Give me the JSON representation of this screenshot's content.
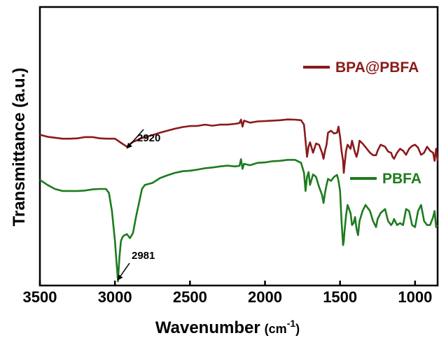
{
  "chart_data": {
    "type": "line",
    "xlabel": "Wavenumber",
    "xlabel_unit_open": "(cm",
    "xlabel_unit_exp": "-1",
    "xlabel_unit_close": ")",
    "ylabel": "Transmittance (a.u.)",
    "xlim": [
      3500,
      850
    ],
    "x_reversed": true,
    "x_ticks": [
      3500,
      3000,
      2500,
      2000,
      1500,
      1000
    ],
    "x_tick_labels": [
      "3500",
      "3000",
      "2500",
      "2000",
      "1500",
      "1000"
    ],
    "ylim": [
      0,
      100
    ],
    "y_ticks_shown": false,
    "grid": false,
    "legend_placement": "right, beside each curve",
    "series": [
      {
        "name": "BPA@PBFA",
        "color": "#8B1A1A",
        "x": [
          3500,
          3450,
          3400,
          3350,
          3300,
          3250,
          3200,
          3150,
          3100,
          3050,
          3000,
          2980,
          2960,
          2940,
          2920,
          2900,
          2880,
          2860,
          2840,
          2800,
          2750,
          2700,
          2650,
          2600,
          2550,
          2500,
          2450,
          2400,
          2350,
          2300,
          2250,
          2200,
          2170,
          2160,
          2150,
          2140,
          2100,
          2050,
          2000,
          1950,
          1900,
          1850,
          1800,
          1760,
          1740,
          1730,
          1720,
          1710,
          1700,
          1680,
          1660,
          1640,
          1620,
          1610,
          1600,
          1590,
          1580,
          1560,
          1540,
          1520,
          1510,
          1500,
          1490,
          1480,
          1475,
          1470,
          1460,
          1450,
          1430,
          1420,
          1410,
          1400,
          1390,
          1380,
          1370,
          1350,
          1330,
          1300,
          1280,
          1260,
          1250,
          1230,
          1200,
          1180,
          1160,
          1150,
          1140,
          1120,
          1100,
          1080,
          1060,
          1040,
          1020,
          1000,
          980,
          960,
          940,
          920,
          900,
          880,
          870,
          860,
          850
        ],
        "y": [
          73,
          72,
          71.5,
          71,
          71,
          71.2,
          71.8,
          71.8,
          71.2,
          71,
          71,
          70,
          69,
          68,
          67,
          68.3,
          69.4,
          70,
          70.8,
          71.8,
          72.8,
          74,
          75,
          76,
          76.8,
          77.3,
          77.4,
          78,
          77.5,
          78,
          78,
          78.4,
          78.8,
          80.5,
          77,
          80,
          79,
          79.6,
          79.8,
          80,
          80.2,
          80.6,
          80.5,
          80.2,
          78,
          70,
          62,
          67,
          69.2,
          64,
          68.6,
          68,
          64,
          61,
          65,
          68,
          74,
          75,
          73.6,
          74,
          77,
          72,
          65,
          60,
          54,
          58,
          65,
          68,
          66,
          70,
          67,
          64,
          62,
          65,
          70,
          68.6,
          66.8,
          64,
          62.8,
          62.8,
          65,
          68,
          67,
          64.6,
          64,
          62,
          61,
          64,
          66,
          65,
          63,
          66,
          67.4,
          68,
          66.5,
          63,
          64,
          67,
          65,
          64,
          60,
          66,
          60
        ]
      },
      {
        "name": "PBFA",
        "color": "#1E7B1E",
        "x": [
          3500,
          3450,
          3400,
          3350,
          3300,
          3250,
          3200,
          3150,
          3100,
          3060,
          3040,
          3020,
          3000,
          2990,
          2980,
          2975,
          2970,
          2960,
          2950,
          2940,
          2920,
          2900,
          2880,
          2860,
          2840,
          2820,
          2800,
          2750,
          2700,
          2650,
          2600,
          2550,
          2500,
          2450,
          2400,
          2350,
          2300,
          2250,
          2200,
          2170,
          2160,
          2150,
          2140,
          2100,
          2050,
          2000,
          1950,
          1900,
          1850,
          1800,
          1760,
          1740,
          1730,
          1720,
          1710,
          1700,
          1680,
          1660,
          1640,
          1620,
          1610,
          1600,
          1590,
          1580,
          1560,
          1540,
          1520,
          1510,
          1500,
          1490,
          1480,
          1475,
          1470,
          1460,
          1450,
          1430,
          1420,
          1410,
          1400,
          1390,
          1380,
          1370,
          1350,
          1330,
          1300,
          1280,
          1260,
          1250,
          1230,
          1200,
          1180,
          1160,
          1150,
          1140,
          1120,
          1100,
          1080,
          1060,
          1040,
          1020,
          1000,
          980,
          960,
          940,
          920,
          900,
          880,
          870,
          860,
          850
        ],
        "y": [
          50.5,
          48,
          46,
          45,
          45,
          45,
          45.2,
          45.8,
          46,
          46,
          44,
          35,
          20,
          10,
          0,
          6,
          12,
          20,
          22,
          22.8,
          23.5,
          21.5,
          24,
          32,
          39,
          46,
          48,
          49,
          51.4,
          52.8,
          54,
          54.8,
          55.1,
          55.6,
          56.3,
          56.7,
          57.2,
          57.6,
          57.2,
          57.5,
          60.8,
          56,
          58.5,
          57.8,
          59,
          59.2,
          59.8,
          60,
          60.5,
          60.5,
          59,
          54,
          45,
          52,
          54.4,
          48,
          53.2,
          52,
          47,
          43,
          39,
          44,
          48,
          51,
          50,
          52,
          53,
          50,
          45,
          30,
          18,
          20,
          25,
          33,
          38,
          34,
          28,
          29,
          32,
          26,
          23,
          30,
          35,
          38,
          35,
          30,
          27,
          31,
          34,
          36,
          30,
          28,
          29,
          31,
          28,
          29,
          28,
          36,
          35,
          28,
          27,
          35,
          38,
          30,
          28,
          28,
          32,
          35,
          27,
          28
        ]
      }
    ],
    "annotations": [
      {
        "text": "2920",
        "series": "BPA@PBFA",
        "x": 2920
      },
      {
        "text": "2981",
        "series": "PBFA",
        "x": 2981
      }
    ]
  }
}
